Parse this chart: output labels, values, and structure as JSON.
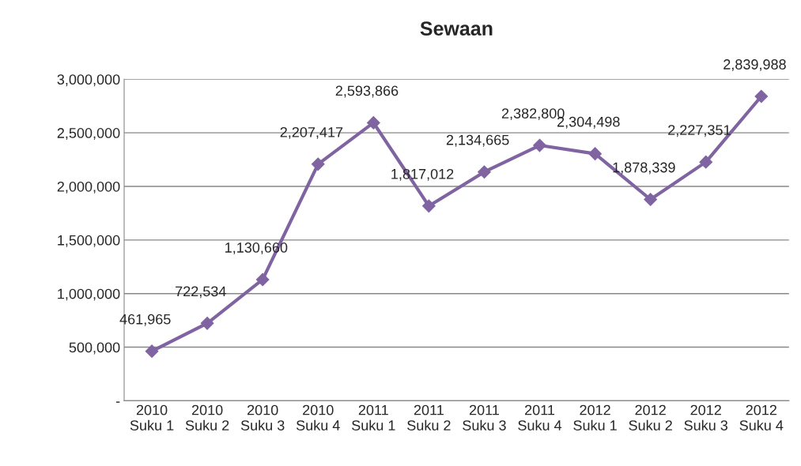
{
  "chart_data": {
    "type": "line",
    "title": "Sewaan",
    "categories": [
      "2010\nSuku 1",
      "2010\nSuku 2",
      "2010\nSuku 3",
      "2010\nSuku 4",
      "2011\nSuku 1",
      "2011\nSuku 2",
      "2011\nSuku 3",
      "2011\nSuku 4",
      "2012\nSuku 1",
      "2012\nSuku 2",
      "2012\nSuku 3",
      "2012\nSuku 4"
    ],
    "series": [
      {
        "color": "#8064a2",
        "values": [
          461965,
          722534,
          1130660,
          2207417,
          2593866,
          1817012,
          2134665,
          2382800,
          2304498,
          1878339,
          2227351,
          2839988
        ],
        "value_labels": [
          "461,965",
          "722,534",
          "1,130,660",
          "2,207,417",
          "2,593,866",
          "1,817,012",
          "2,134,665",
          "2,382,800",
          "2,304,498",
          "1,878,339",
          "2,227,351",
          "2,839,988"
        ]
      }
    ],
    "ylim": [
      0,
      3000000
    ],
    "yticks": [
      {
        "value": 0,
        "label": "-"
      },
      {
        "value": 500000,
        "label": "500,000"
      },
      {
        "value": 1000000,
        "label": "1,000,000"
      },
      {
        "value": 1500000,
        "label": "1,500,000"
      },
      {
        "value": 2000000,
        "label": "2,000,000"
      },
      {
        "value": 2500000,
        "label": "2,500,000"
      },
      {
        "value": 3000000,
        "label": "3,000,000"
      }
    ],
    "grid": "y",
    "marker": "diamond",
    "line_style": "solid",
    "legend": false
  }
}
